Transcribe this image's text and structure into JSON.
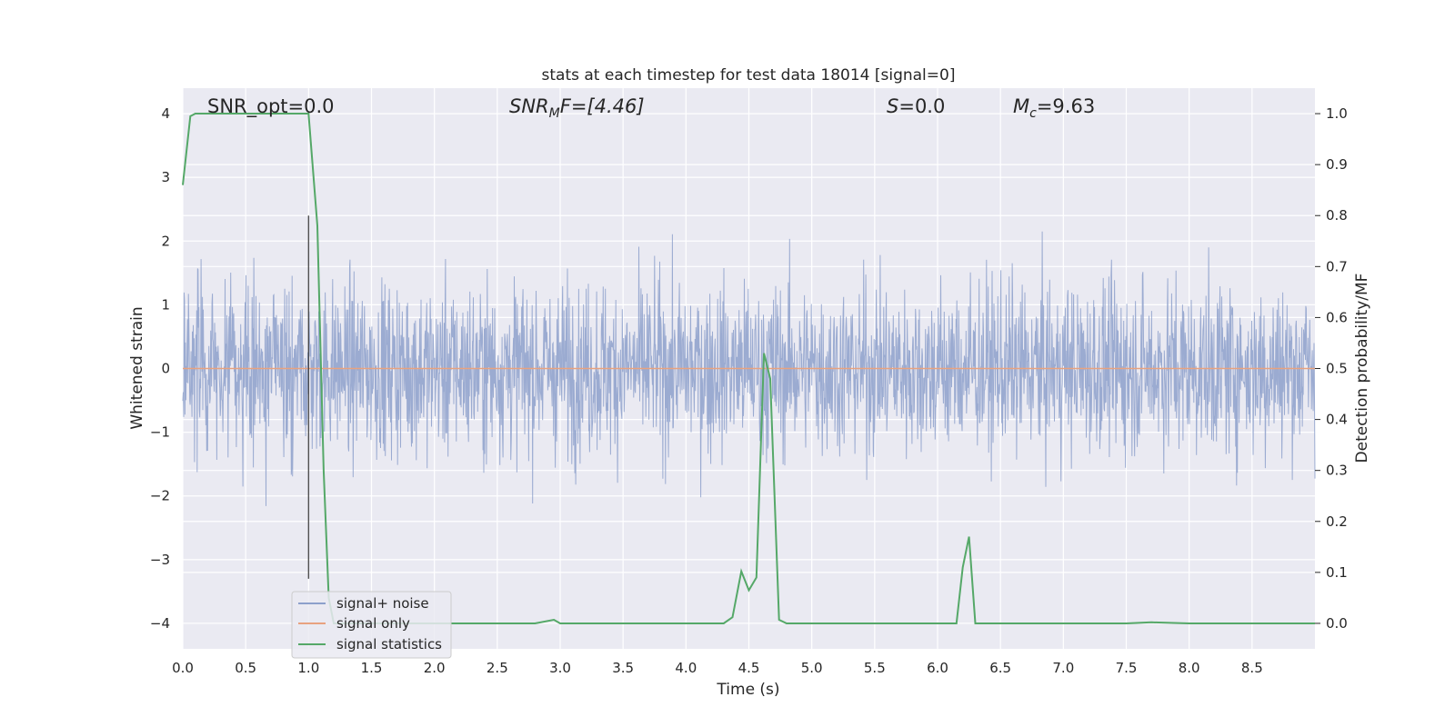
{
  "chart_data": {
    "type": "line",
    "title": "stats at each timestep for test data 18014 [signal=0]",
    "xlabel": "Time (s)",
    "ylabel": "Whitened strain",
    "y2label": "Detection probability/MF",
    "xlim": [
      0,
      9.0
    ],
    "ylim": [
      -4.4,
      4.4
    ],
    "y2lim": [
      -0.05,
      1.05
    ],
    "xticks": [
      0.0,
      0.5,
      1.0,
      1.5,
      2.0,
      2.5,
      3.0,
      3.5,
      4.0,
      4.5,
      5.0,
      5.5,
      6.0,
      6.5,
      7.0,
      7.5,
      8.0,
      8.5
    ],
    "xtick_labels": [
      "0.0",
      "0.5",
      "1.0",
      "1.5",
      "2.0",
      "2.5",
      "3.0",
      "3.5",
      "4.0",
      "4.5",
      "5.0",
      "5.5",
      "6.0",
      "6.5",
      "7.0",
      "7.5",
      "8.0",
      "8.5"
    ],
    "yticks": [
      4,
      3,
      2,
      1,
      0,
      -1,
      -2,
      -3,
      -4
    ],
    "ytick_labels": [
      "4",
      "3",
      "2",
      "1",
      "0",
      "−1",
      "−2",
      "−3",
      "−4"
    ],
    "y2ticks": [
      1.0,
      0.9,
      0.8,
      0.7,
      0.6,
      0.5,
      0.4,
      0.3,
      0.2,
      0.1,
      0.0
    ],
    "y2tick_labels": [
      "1.0",
      "0.9",
      "0.8",
      "0.7",
      "0.6",
      "0.5",
      "0.4",
      "0.3",
      "0.2",
      "0.1",
      "0.0"
    ],
    "grid": true,
    "legend_position": "lower-left",
    "annotations": {
      "snr_opt": "SNR_opt=0.0",
      "snr_mf_main": "SNR",
      "snr_mf_sub": "M",
      "snr_mf_tail": "F=[4.46]",
      "s_var": "S",
      "s_value": "=0.0",
      "mc_var": "M",
      "mc_sub": "c",
      "mc_value": "=9.63"
    },
    "marker_line_x": 1.0,
    "series": [
      {
        "name": "signal+ noise",
        "color": "#8da0cb",
        "description_kind": "noise",
        "amplitude_envelope": 2.5
      },
      {
        "name": "signal only",
        "color": "#e8a27f",
        "values_constant": 0.0
      },
      {
        "name": "signal statistics",
        "color": "#55a868",
        "axis": "right",
        "x": [
          0.0,
          0.06,
          0.1,
          0.2,
          0.5,
          0.8,
          0.98,
          1.0,
          1.07,
          1.12,
          1.16,
          1.2,
          2.0,
          2.8,
          2.95,
          3.0,
          3.5,
          4.0,
          4.3,
          4.37,
          4.44,
          4.5,
          4.56,
          4.62,
          4.67,
          4.74,
          4.8,
          5.0,
          5.5,
          6.0,
          6.15,
          6.2,
          6.25,
          6.3,
          6.35,
          7.0,
          7.5,
          7.7,
          8.0,
          8.5,
          9.0
        ],
        "values": [
          0.86,
          0.995,
          1.0,
          1.0,
          1.0,
          1.0,
          1.0,
          1.0,
          0.78,
          0.3,
          0.05,
          0.0,
          0.0,
          0.0,
          0.007,
          0.0,
          0.0,
          0.0,
          0.0,
          0.012,
          0.102,
          0.065,
          0.09,
          0.53,
          0.48,
          0.007,
          0.0,
          0.0,
          0.0,
          0.0,
          0.0,
          0.11,
          0.17,
          0.0,
          0.0,
          0.0,
          0.0,
          0.002,
          0.0,
          0.0,
          0.0
        ]
      }
    ]
  }
}
